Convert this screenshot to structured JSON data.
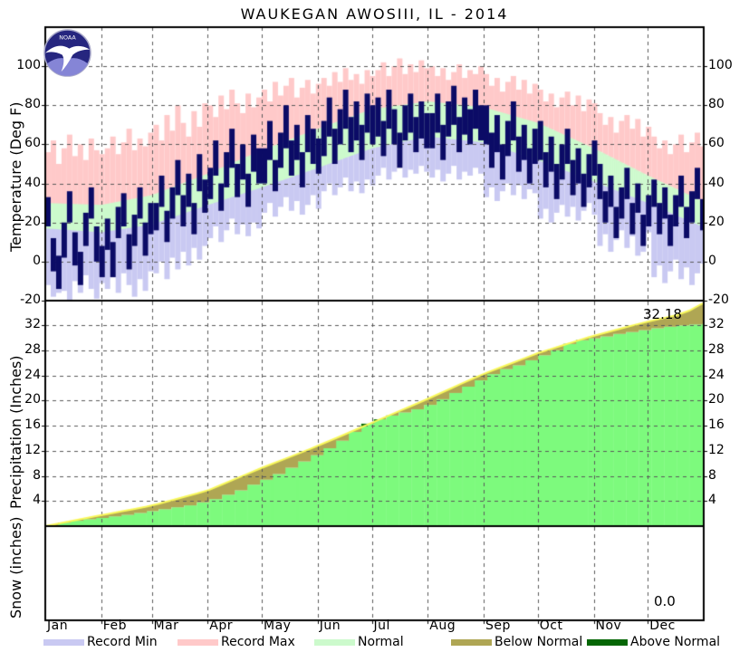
{
  "title": "WAUKEGAN  AWOSIII, IL - 2014",
  "logo": {
    "text": "NOAA"
  },
  "axes": {
    "temperature": {
      "label": "Temperature (Deg F)",
      "ticks": [
        100,
        80,
        60,
        40,
        20,
        0,
        -20
      ]
    },
    "precipitation": {
      "label": "Precipitation (Inches)",
      "ticks": [
        32,
        28,
        24,
        20,
        16,
        12,
        8,
        4
      ]
    },
    "snow": {
      "label": "Snow (inches)"
    }
  },
  "months": [
    "Jan",
    "Feb",
    "Mar",
    "Apr",
    "May",
    "Jun",
    "Jul",
    "Aug",
    "Sep",
    "Oct",
    "Nov",
    "Dec"
  ],
  "legend": [
    {
      "label": "Record Min",
      "color": "#C9C9F2"
    },
    {
      "label": "Record Max",
      "color": "#FFC9C9"
    },
    {
      "label": "Normal",
      "color": "#CCFACC"
    },
    {
      "label": "Below Normal",
      "color": "#AFA654"
    },
    {
      "label": "Above Normal",
      "color": "#056605"
    }
  ],
  "annotations": {
    "precip_total": "32.18",
    "snow_total": "0.0"
  },
  "colors": {
    "record_min_band": "#C9C9F2",
    "record_max_band": "#FFC9C9",
    "normal_band": "#CCFACC",
    "actual_temp_bars": "#0B0B66",
    "precip_actual_fill": "#7DFA7D",
    "precip_below_normal": "#AFA654",
    "precip_above_normal": "#056605",
    "precip_normal_line": "#F8F85A",
    "gridline": "#5A5A5A",
    "border": "#000000"
  },
  "chart_data": [
    {
      "type": "area",
      "panel": "temperature",
      "title": "WAUKEGAN  AWOSIII, IL - 2014",
      "ylabel": "Temperature (Deg F)",
      "ylim": [
        -20,
        120
      ],
      "grid": true,
      "step_days": 3,
      "series": [
        {
          "name": "record_max",
          "values": [
            56,
            62,
            50,
            58,
            65,
            54,
            60,
            52,
            63,
            57,
            55,
            58,
            64,
            55,
            61,
            68,
            57,
            63,
            59,
            66,
            70,
            62,
            75,
            67,
            80,
            71,
            64,
            77,
            69,
            81,
            80,
            74,
            85,
            78,
            88,
            81,
            76,
            86,
            79,
            84,
            88,
            82,
            92,
            85,
            90,
            94,
            84,
            89,
            93,
            86,
            91,
            94,
            90,
            97,
            92,
            99,
            93,
            96,
            91,
            98,
            95,
            98,
            102,
            95,
            100,
            104,
            96,
            101,
            97,
            103,
            99,
            100,
            95,
            99,
            93,
            97,
            101,
            94,
            98,
            96,
            100,
            96,
            90,
            94,
            87,
            92,
            95,
            88,
            93,
            86,
            91,
            88,
            82,
            86,
            79,
            84,
            87,
            80,
            85,
            77,
            83,
            81,
            76,
            70,
            74,
            66,
            72,
            75,
            68,
            73,
            64,
            69,
            64,
            58,
            62,
            55,
            60,
            65,
            56,
            61,
            66,
            59
          ]
        },
        {
          "name": "record_min",
          "values": [
            -12,
            -18,
            -16,
            -15,
            -20,
            -10,
            -16,
            -7,
            -14,
            -19,
            -11,
            -14,
            -8,
            -16,
            -6,
            -12,
            -18,
            -9,
            -15,
            -5,
            -6,
            0,
            -9,
            2,
            -4,
            5,
            -2,
            7,
            1,
            8,
            12,
            18,
            10,
            16,
            22,
            14,
            19,
            13,
            20,
            17,
            25,
            30,
            23,
            28,
            33,
            26,
            31,
            24,
            29,
            34,
            27,
            36,
            40,
            34,
            38,
            43,
            36,
            41,
            35,
            42,
            39,
            44,
            48,
            42,
            46,
            50,
            43,
            47,
            45,
            49,
            46,
            43,
            47,
            41,
            45,
            49,
            42,
            46,
            44,
            48,
            45,
            33,
            38,
            31,
            36,
            40,
            34,
            39,
            32,
            37,
            35,
            22,
            27,
            20,
            25,
            29,
            23,
            28,
            21,
            26,
            30,
            24,
            8,
            14,
            5,
            11,
            16,
            7,
            13,
            3,
            5,
            15,
            -8,
            -2,
            -11,
            -5,
            1,
            -9,
            -3,
            -12,
            -6,
            -1
          ]
        },
        {
          "name": "actual_high",
          "values": [
            33,
            12,
            3,
            20,
            36,
            15,
            5,
            25,
            38,
            18,
            8,
            22,
            10,
            28,
            35,
            14,
            24,
            38,
            20,
            30,
            30,
            44,
            26,
            38,
            52,
            34,
            45,
            30,
            55,
            42,
            48,
            62,
            40,
            56,
            68,
            50,
            60,
            45,
            65,
            58,
            58,
            72,
            52,
            66,
            80,
            62,
            70,
            56,
            75,
            68,
            63,
            72,
            84,
            68,
            78,
            88,
            74,
            82,
            70,
            86,
            80,
            84,
            72,
            88,
            78,
            66,
            80,
            86,
            74,
            82,
            76,
            76,
            86,
            70,
            82,
            90,
            74,
            84,
            78,
            88,
            80,
            80,
            66,
            75,
            60,
            72,
            82,
            64,
            70,
            58,
            68,
            72,
            56,
            64,
            50,
            60,
            68,
            52,
            58,
            45,
            55,
            62,
            50,
            36,
            44,
            28,
            38,
            48,
            30,
            40,
            24,
            34,
            42,
            30,
            38,
            24,
            34,
            44,
            28,
            36,
            48,
            32
          ]
        },
        {
          "name": "actual_low",
          "values": [
            18,
            -5,
            -14,
            2,
            20,
            -2,
            -12,
            8,
            22,
            0,
            -8,
            6,
            -8,
            12,
            18,
            -4,
            8,
            22,
            3,
            14,
            16,
            28,
            10,
            22,
            34,
            18,
            28,
            14,
            36,
            25,
            32,
            44,
            26,
            38,
            48,
            33,
            42,
            28,
            46,
            40,
            40,
            52,
            36,
            48,
            58,
            44,
            52,
            38,
            56,
            50,
            45,
            54,
            64,
            50,
            60,
            68,
            56,
            62,
            52,
            66,
            60,
            64,
            54,
            68,
            60,
            48,
            62,
            66,
            56,
            63,
            58,
            58,
            66,
            52,
            64,
            70,
            56,
            65,
            60,
            68,
            62,
            60,
            48,
            56,
            42,
            54,
            62,
            46,
            52,
            40,
            50,
            52,
            38,
            46,
            32,
            42,
            50,
            34,
            40,
            28,
            38,
            44,
            32,
            20,
            28,
            12,
            22,
            32,
            14,
            25,
            8,
            18,
            28,
            14,
            22,
            8,
            18,
            28,
            12,
            20,
            32,
            16
          ]
        }
      ],
      "normals": {
        "anchor_days": [
          0,
          31,
          59,
          90,
          120,
          151,
          181,
          212,
          243,
          273,
          304,
          334,
          364
        ],
        "normal_high": [
          30,
          29,
          34,
          45,
          57,
          68,
          78,
          82,
          79,
          71,
          58,
          44,
          31
        ],
        "normal_low": [
          17,
          15,
          19,
          29,
          38,
          48,
          58,
          64,
          61,
          52,
          41,
          30,
          18
        ]
      }
    },
    {
      "type": "area",
      "panel": "precipitation",
      "ylabel": "Precipitation (Inches)",
      "ylim": [
        0,
        35.75
      ],
      "grid": true,
      "step_days": 7,
      "series": [
        {
          "name": "actual_cumulative",
          "values": [
            0.05,
            0.55,
            0.85,
            1.1,
            1.3,
            1.55,
            1.8,
            2.1,
            2.4,
            2.7,
            3.0,
            3.3,
            3.8,
            4.3,
            5.0,
            5.7,
            6.6,
            7.4,
            8.3,
            9.3,
            10.3,
            11.3,
            12.4,
            13.6,
            15.0,
            16.3,
            17.0,
            17.6,
            18.1,
            18.6,
            19.3,
            20.2,
            21.2,
            22.2,
            23.2,
            24.2,
            25.0,
            25.6,
            26.4,
            27.2,
            28.0,
            29.0,
            29.6,
            29.9,
            30.2,
            30.6,
            30.9,
            31.2,
            31.5,
            31.75,
            31.95,
            32.1,
            32.18
          ]
        },
        {
          "name": "normal_cumulative",
          "values": [
            0.0,
            0.4,
            0.79,
            1.19,
            1.58,
            1.96,
            2.34,
            2.71,
            3.09,
            3.56,
            4.1,
            4.64,
            5.18,
            5.79,
            6.63,
            7.47,
            8.31,
            9.15,
            9.94,
            10.73,
            11.52,
            12.31,
            13.15,
            13.98,
            14.85,
            15.71,
            16.57,
            17.43,
            18.29,
            19.14,
            20.0,
            20.9,
            21.8,
            22.71,
            23.61,
            24.45,
            25.22,
            25.99,
            26.76,
            27.53,
            28.16,
            28.8,
            29.43,
            30.06,
            30.6,
            31.13,
            31.67,
            32.2,
            32.69,
            33.14,
            33.59,
            34.3,
            35.4
          ]
        }
      ],
      "final_actual": "32.18"
    },
    {
      "type": "area",
      "panel": "snow",
      "ylabel": "Snow (inches)",
      "series": [],
      "final_actual": "0.0"
    }
  ]
}
